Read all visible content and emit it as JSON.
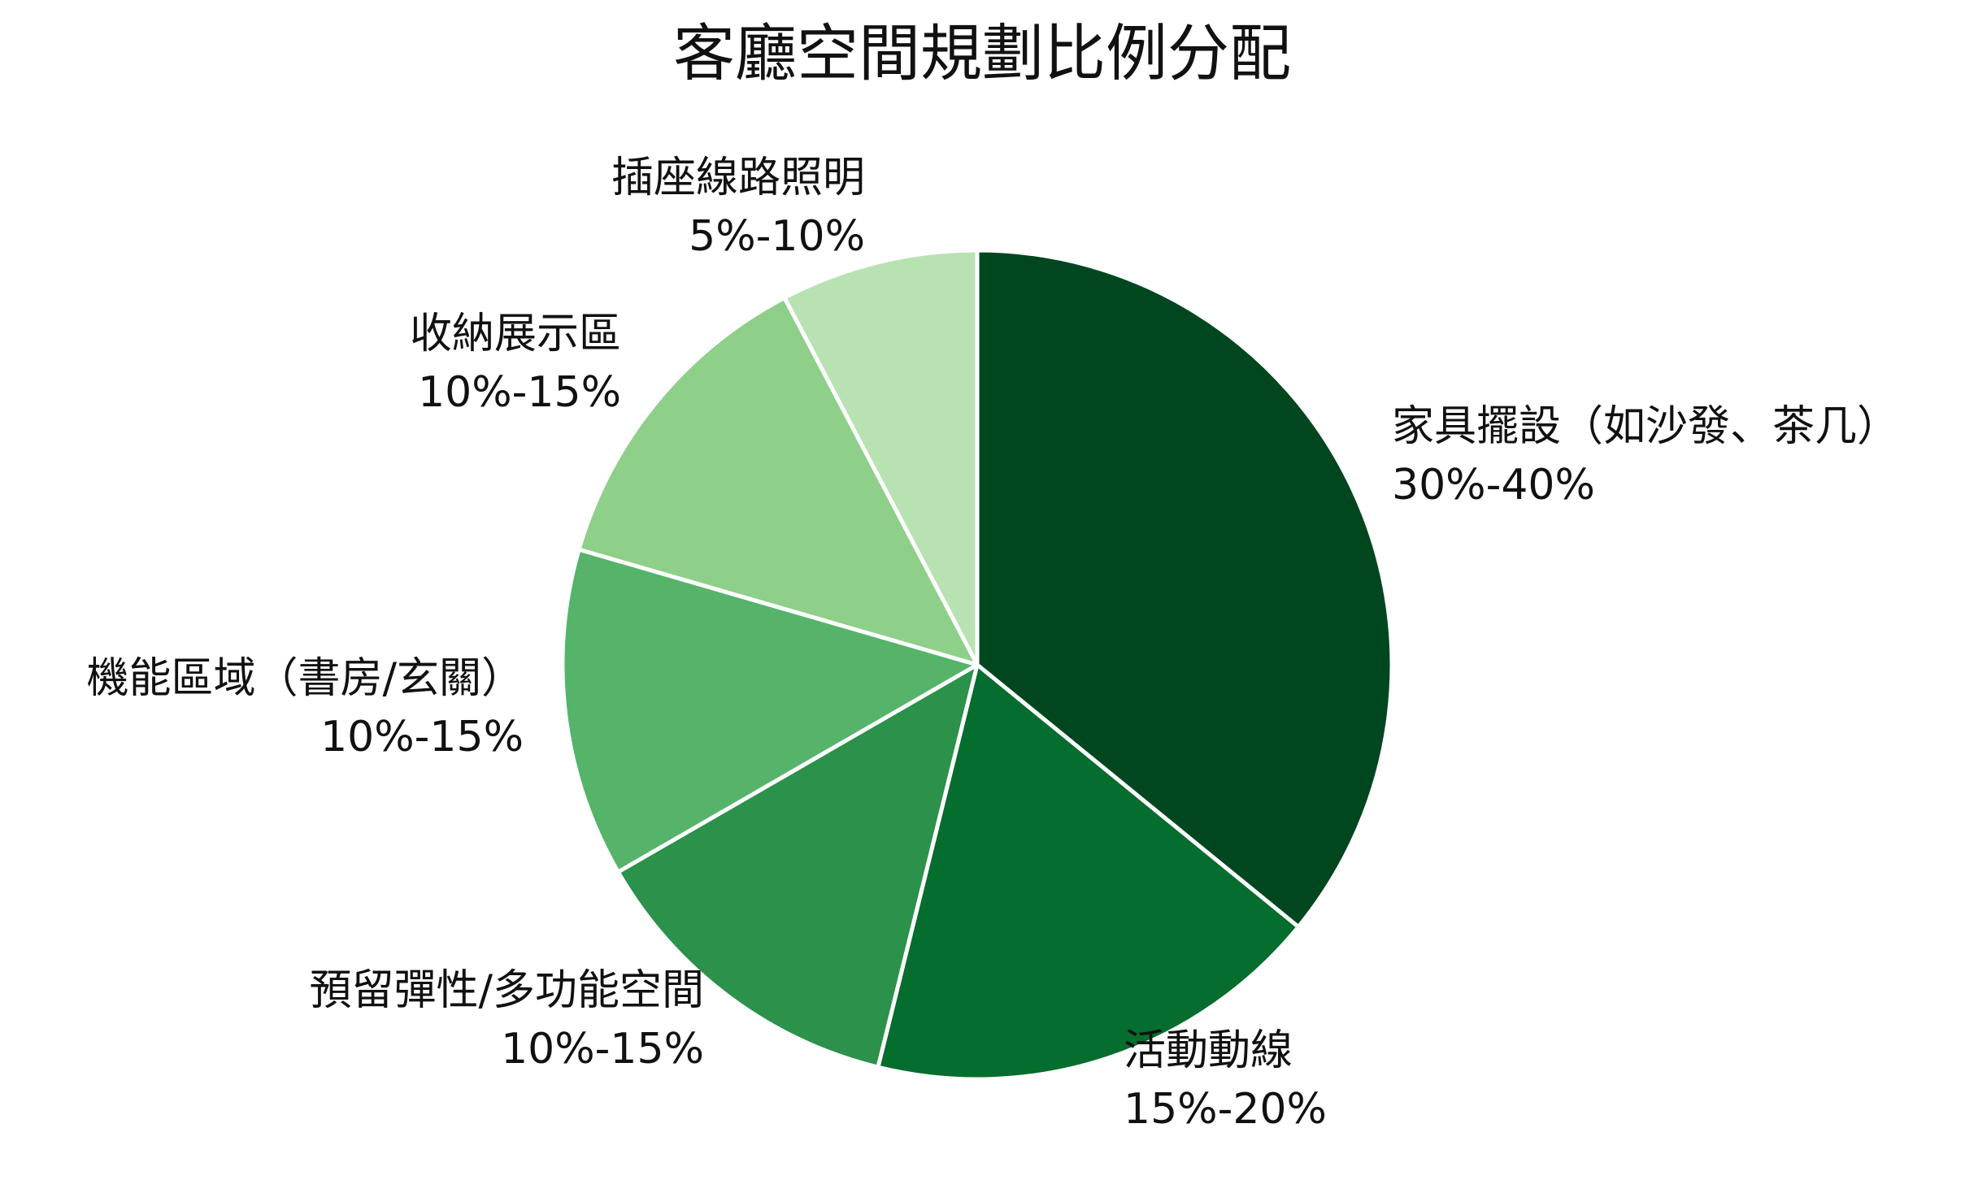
{
  "chart_data": {
    "type": "pie",
    "title": "客廳空間規劃比例分配",
    "slices": [
      {
        "label": "家具擺設（如沙發、茶几）",
        "value_label": "30%-40%",
        "value": 35,
        "color": "#00471f"
      },
      {
        "label": "活動動線",
        "value_label": "15%-20%",
        "value": 17.5,
        "color": "#056d2d"
      },
      {
        "label": "預留彈性/多功能空間",
        "value_label": "10%-15%",
        "value": 12.5,
        "color": "#2b914b"
      },
      {
        "label": "機能區域（書房/玄關）",
        "value_label": "10%-15%",
        "value": 12.5,
        "color": "#55b46a"
      },
      {
        "label": "收納展示區",
        "value_label": "10%-15%",
        "value": 12.5,
        "color": "#8ecf89"
      },
      {
        "label": "插座線路照明",
        "value_label": "5%-10%",
        "value": 7.5,
        "color": "#b8e2b2"
      }
    ],
    "start_angle": "12 o'clock",
    "direction": "clockwise",
    "legend": "none"
  }
}
